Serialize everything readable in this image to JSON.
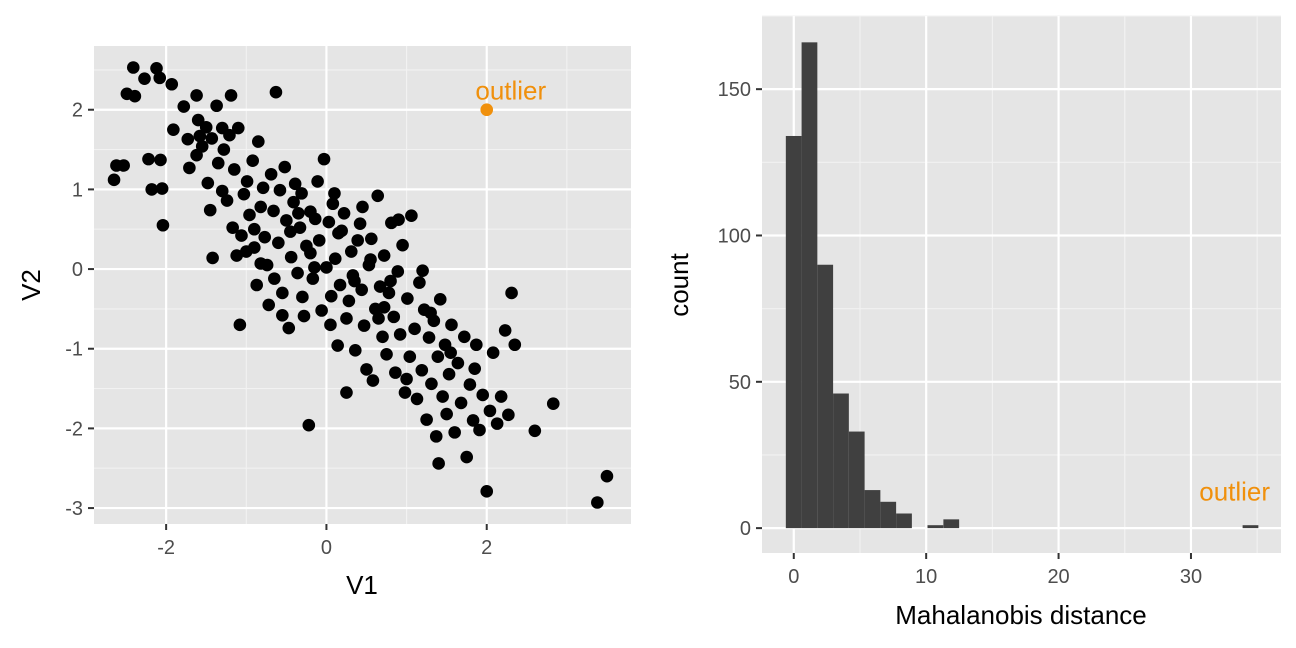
{
  "chart_data": [
    {
      "type": "scatter",
      "title": "",
      "xlabel": "V1",
      "ylabel": "V2",
      "xlim": [
        -2.9,
        3.8
      ],
      "ylim": [
        -3.2,
        2.8
      ],
      "x_ticks": [
        -2,
        0,
        2
      ],
      "y_ticks": [
        -3,
        -2,
        -1,
        0,
        1,
        2
      ],
      "x_tick_labels": [
        "-2",
        "0",
        "2"
      ],
      "y_tick_labels": [
        "-3",
        "-2",
        "-1",
        "0",
        "1",
        "2"
      ],
      "grid": true,
      "point_color": "#000000",
      "panel_background": "#e5e5e5",
      "series": [
        {
          "points": [
            [
              -2.65,
              1.12
            ],
            [
              -2.62,
              1.3
            ],
            [
              -2.53,
              1.3
            ],
            [
              -2.49,
              2.2
            ],
            [
              -2.41,
              2.53
            ],
            [
              -2.39,
              2.17
            ],
            [
              -2.27,
              2.39
            ],
            [
              -2.22,
              1.38
            ],
            [
              -2.18,
              1.0
            ],
            [
              -2.12,
              2.52
            ],
            [
              -2.08,
              2.4
            ],
            [
              -2.07,
              1.37
            ],
            [
              -2.04,
              0.55
            ],
            [
              -2.05,
              1.01
            ],
            [
              -1.93,
              2.32
            ],
            [
              -1.91,
              1.75
            ],
            [
              -1.78,
              2.04
            ],
            [
              -1.73,
              1.63
            ],
            [
              -1.71,
              1.27
            ],
            [
              -1.62,
              2.18
            ],
            [
              -1.6,
              1.87
            ],
            [
              -1.58,
              1.67
            ],
            [
              -1.55,
              1.54
            ],
            [
              -1.5,
              1.78
            ],
            [
              -1.48,
              1.08
            ],
            [
              -1.45,
              0.74
            ],
            [
              -1.43,
              1.64
            ],
            [
              -1.42,
              0.14
            ],
            [
              -1.37,
              2.05
            ],
            [
              -1.35,
              1.33
            ],
            [
              -1.3,
              0.98
            ],
            [
              -1.28,
              1.5
            ],
            [
              -1.24,
              0.86
            ],
            [
              -1.21,
              1.68
            ],
            [
              -1.19,
              2.18
            ],
            [
              -1.17,
              0.52
            ],
            [
              -1.15,
              1.25
            ],
            [
              -1.12,
              0.17
            ],
            [
              -1.1,
              1.77
            ],
            [
              -1.08,
              -0.7
            ],
            [
              -1.06,
              0.42
            ],
            [
              -1.03,
              0.94
            ],
            [
              -0.99,
              1.1
            ],
            [
              -0.96,
              0.68
            ],
            [
              -0.92,
              1.36
            ],
            [
              -0.9,
              0.27
            ],
            [
              -0.87,
              -0.2
            ],
            [
              -0.85,
              1.6
            ],
            [
              -0.82,
              0.78
            ],
            [
              -0.79,
              1.02
            ],
            [
              -0.77,
              0.4
            ],
            [
              -0.74,
              0.05
            ],
            [
              -0.72,
              -0.45
            ],
            [
              -0.69,
              1.19
            ],
            [
              -0.66,
              0.73
            ],
            [
              -0.63,
              2.22
            ],
            [
              -0.6,
              0.33
            ],
            [
              -0.58,
              0.99
            ],
            [
              -0.55,
              -0.3
            ],
            [
              -0.52,
              1.28
            ],
            [
              -0.5,
              0.61
            ],
            [
              -0.47,
              -0.74
            ],
            [
              -0.44,
              0.15
            ],
            [
              -0.41,
              0.84
            ],
            [
              -0.39,
              1.07
            ],
            [
              -0.36,
              -0.05
            ],
            [
              -0.33,
              0.52
            ],
            [
              -0.31,
              0.95
            ],
            [
              -0.28,
              -0.59
            ],
            [
              -0.25,
              0.29
            ],
            [
              -0.22,
              -1.96
            ],
            [
              -0.2,
              0.72
            ],
            [
              -0.17,
              -0.12
            ],
            [
              -0.14,
              0.63
            ],
            [
              -0.11,
              1.1
            ],
            [
              -0.09,
              0.36
            ],
            [
              -0.06,
              -0.52
            ],
            [
              -0.03,
              1.38
            ],
            [
              0.0,
              0.02
            ],
            [
              0.03,
              0.59
            ],
            [
              0.06,
              -0.34
            ],
            [
              0.08,
              0.82
            ],
            [
              0.11,
              0.13
            ],
            [
              0.14,
              -0.96
            ],
            [
              0.17,
              -0.2
            ],
            [
              0.19,
              0.48
            ],
            [
              0.22,
              0.7
            ],
            [
              0.25,
              -1.55
            ],
            [
              0.28,
              -0.4
            ],
            [
              0.31,
              0.22
            ],
            [
              0.33,
              -0.08
            ],
            [
              0.36,
              -1.02
            ],
            [
              0.39,
              0.36
            ],
            [
              0.42,
              0.57
            ],
            [
              0.44,
              -0.26
            ],
            [
              0.47,
              -0.71
            ],
            [
              0.5,
              -1.26
            ],
            [
              0.53,
              0.05
            ],
            [
              0.56,
              0.38
            ],
            [
              0.58,
              -1.4
            ],
            [
              0.61,
              -0.5
            ],
            [
              0.64,
              0.92
            ],
            [
              0.67,
              -0.22
            ],
            [
              0.7,
              -0.85
            ],
            [
              0.72,
              0.17
            ],
            [
              0.75,
              -1.07
            ],
            [
              0.78,
              -0.3
            ],
            [
              0.81,
              0.58
            ],
            [
              0.84,
              -0.6
            ],
            [
              0.86,
              -1.3
            ],
            [
              0.89,
              -0.03
            ],
            [
              0.92,
              -0.82
            ],
            [
              0.95,
              0.3
            ],
            [
              0.98,
              -1.55
            ],
            [
              1.01,
              -0.37
            ],
            [
              1.04,
              -1.1
            ],
            [
              1.06,
              0.67
            ],
            [
              1.1,
              -0.75
            ],
            [
              1.13,
              -1.63
            ],
            [
              1.16,
              -0.17
            ],
            [
              1.19,
              -1.27
            ],
            [
              1.22,
              -0.51
            ],
            [
              1.25,
              -1.89
            ],
            [
              1.28,
              -0.86
            ],
            [
              1.31,
              -1.44
            ],
            [
              1.34,
              -0.65
            ],
            [
              1.37,
              -2.1
            ],
            [
              1.39,
              -1.1
            ],
            [
              1.42,
              -0.38
            ],
            [
              1.45,
              -1.6
            ],
            [
              1.48,
              -0.95
            ],
            [
              1.5,
              -1.82
            ],
            [
              1.53,
              -1.32
            ],
            [
              1.56,
              -0.7
            ],
            [
              1.6,
              -2.05
            ],
            [
              1.64,
              -1.18
            ],
            [
              1.68,
              -1.68
            ],
            [
              1.72,
              -0.85
            ],
            [
              1.75,
              -2.36
            ],
            [
              1.79,
              -1.45
            ],
            [
              1.83,
              -1.9
            ],
            [
              1.87,
              -0.95
            ],
            [
              1.91,
              -2.02
            ],
            [
              1.95,
              -1.58
            ],
            [
              2.0,
              -2.79
            ],
            [
              2.04,
              -1.78
            ],
            [
              2.08,
              -1.05
            ],
            [
              2.13,
              -1.94
            ],
            [
              2.18,
              -1.6
            ],
            [
              2.23,
              -0.77
            ],
            [
              2.27,
              -1.83
            ],
            [
              2.31,
              -0.3
            ],
            [
              2.35,
              -0.95
            ],
            [
              2.6,
              -2.03
            ],
            [
              2.83,
              -1.69
            ],
            [
              3.38,
              -2.93
            ],
            [
              3.5,
              -2.6
            ],
            [
              1.4,
              -2.44
            ],
            [
              0.65,
              -0.62
            ],
            [
              0.9,
              0.62
            ],
            [
              -0.3,
              -0.35
            ],
            [
              -0.65,
              -0.12
            ],
            [
              -0.15,
              0.02
            ],
            [
              0.1,
              0.95
            ],
            [
              0.45,
              0.78
            ],
            [
              1.2,
              -0.02
            ],
            [
              1.3,
              -0.55
            ],
            [
              -1.0,
              0.22
            ],
            [
              -0.45,
              0.47
            ],
            [
              0.25,
              -0.62
            ],
            [
              0.72,
              -0.48
            ],
            [
              1.55,
              -1.05
            ],
            [
              -1.3,
              1.77
            ],
            [
              -0.82,
              0.07
            ],
            [
              0.05,
              -0.7
            ],
            [
              0.55,
              0.12
            ],
            [
              1.0,
              -1.38
            ],
            [
              -0.55,
              -0.58
            ],
            [
              1.85,
              -1.25
            ],
            [
              -1.62,
              1.43
            ],
            [
              -0.2,
              0.2
            ],
            [
              0.35,
              -0.15
            ],
            [
              0.15,
              0.45
            ],
            [
              -0.35,
              0.7
            ],
            [
              0.8,
              -0.15
            ],
            [
              -0.9,
              0.5
            ]
          ]
        },
        {
          "name": "outlier",
          "color": "#f0900c",
          "points": [
            [
              2.0,
              2.0
            ]
          ]
        }
      ],
      "annotations": [
        {
          "text": "outlier",
          "x": 2.3,
          "y": 2.13,
          "color": "#f0900c"
        }
      ]
    },
    {
      "type": "bar",
      "title": "",
      "xlabel": "Mahalanobis distance",
      "ylabel": "count",
      "xlim": [
        -2.4,
        36.8
      ],
      "ylim": [
        -8.5,
        175
      ],
      "x_ticks": [
        0,
        10,
        20,
        30
      ],
      "y_ticks": [
        0,
        50,
        100,
        150
      ],
      "x_tick_labels": [
        "0",
        "10",
        "20",
        "30"
      ],
      "y_tick_labels": [
        "0",
        "50",
        "100",
        "150"
      ],
      "grid": true,
      "bar_color": "#404040",
      "panel_background": "#e5e5e5",
      "bin_width": 1.19,
      "bins": [
        {
          "x0": -0.6,
          "count": 134
        },
        {
          "x0": 0.59,
          "count": 166
        },
        {
          "x0": 1.78,
          "count": 90
        },
        {
          "x0": 2.97,
          "count": 46
        },
        {
          "x0": 4.16,
          "count": 33
        },
        {
          "x0": 5.35,
          "count": 13
        },
        {
          "x0": 6.54,
          "count": 9
        },
        {
          "x0": 7.73,
          "count": 5
        },
        {
          "x0": 10.1,
          "count": 1
        },
        {
          "x0": 11.3,
          "count": 3
        },
        {
          "x0": 33.9,
          "count": 1
        }
      ],
      "annotations": [
        {
          "text": "outlier",
          "x": 33.3,
          "y": 9.5,
          "color": "#f0900c"
        }
      ]
    }
  ]
}
